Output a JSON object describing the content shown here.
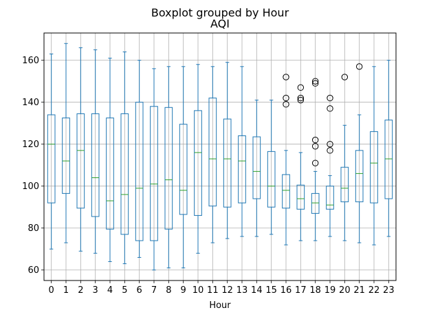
{
  "chart_data": {
    "type": "boxplot",
    "suptitle": "Boxplot grouped by Hour",
    "title": "AQI",
    "xlabel": "Hour",
    "ylabel": "",
    "categories": [
      "0",
      "1",
      "2",
      "3",
      "4",
      "5",
      "6",
      "7",
      "8",
      "9",
      "10",
      "11",
      "12",
      "13",
      "14",
      "15",
      "16",
      "17",
      "18",
      "19",
      "20",
      "21",
      "22",
      "23"
    ],
    "ylim": [
      55,
      173
    ],
    "yticks": [
      60,
      80,
      100,
      120,
      140,
      160
    ],
    "grid": true,
    "colors": {
      "box": "#1f77b4",
      "median": "#2ca02c",
      "grid": "#b0b0b0",
      "frame": "#000000"
    },
    "boxes": [
      {
        "whislo": 70,
        "q1": 92,
        "med": 120,
        "q3": 134,
        "whishi": 163,
        "fliers": []
      },
      {
        "whislo": 73,
        "q1": 96.5,
        "med": 112,
        "q3": 132.5,
        "whishi": 168,
        "fliers": []
      },
      {
        "whislo": 69,
        "q1": 89.5,
        "med": 117,
        "q3": 134.5,
        "whishi": 166,
        "fliers": []
      },
      {
        "whislo": 68,
        "q1": 85.5,
        "med": 104,
        "q3": 134.5,
        "whishi": 165,
        "fliers": []
      },
      {
        "whislo": 64,
        "q1": 79.5,
        "med": 93,
        "q3": 132.5,
        "whishi": 161,
        "fliers": []
      },
      {
        "whislo": 63,
        "q1": 77,
        "med": 96,
        "q3": 134.5,
        "whishi": 164,
        "fliers": []
      },
      {
        "whislo": 66,
        "q1": 74,
        "med": 99,
        "q3": 140,
        "whishi": 160,
        "fliers": []
      },
      {
        "whislo": 60,
        "q1": 74,
        "med": 101,
        "q3": 138,
        "whishi": 156,
        "fliers": []
      },
      {
        "whislo": 61,
        "q1": 79.5,
        "med": 103,
        "q3": 137.5,
        "whishi": 157,
        "fliers": []
      },
      {
        "whislo": 61,
        "q1": 86.5,
        "med": 98,
        "q3": 129.5,
        "whishi": 157,
        "fliers": []
      },
      {
        "whislo": 68,
        "q1": 86,
        "med": 116,
        "q3": 136,
        "whishi": 158,
        "fliers": []
      },
      {
        "whislo": 73,
        "q1": 90.5,
        "med": 113,
        "q3": 142,
        "whishi": 157,
        "fliers": []
      },
      {
        "whislo": 75,
        "q1": 90,
        "med": 113,
        "q3": 132,
        "whishi": 159,
        "fliers": []
      },
      {
        "whislo": 76,
        "q1": 92,
        "med": 112,
        "q3": 124,
        "whishi": 157,
        "fliers": []
      },
      {
        "whislo": 76,
        "q1": 94,
        "med": 107,
        "q3": 123.5,
        "whishi": 141,
        "fliers": []
      },
      {
        "whislo": 77,
        "q1": 90,
        "med": 100,
        "q3": 116.5,
        "whishi": 141,
        "fliers": []
      },
      {
        "whislo": 72,
        "q1": 89.5,
        "med": 98,
        "q3": 105.5,
        "whishi": 117,
        "fliers": [
          139,
          142,
          152
        ]
      },
      {
        "whislo": 74,
        "q1": 89,
        "med": 94,
        "q3": 100.5,
        "whishi": 116,
        "fliers": [
          141,
          142,
          147
        ]
      },
      {
        "whislo": 74,
        "q1": 87,
        "med": 92,
        "q3": 96.5,
        "whishi": 107,
        "fliers": [
          111,
          119,
          122,
          149,
          150
        ]
      },
      {
        "whislo": 76,
        "q1": 89,
        "med": 91,
        "q3": 100,
        "whishi": 105,
        "fliers": [
          117,
          120,
          137,
          142
        ]
      },
      {
        "whislo": 74,
        "q1": 92.5,
        "med": 99,
        "q3": 109,
        "whishi": 129,
        "fliers": [
          152
        ]
      },
      {
        "whislo": 73,
        "q1": 92.5,
        "med": 106,
        "q3": 117,
        "whishi": 134,
        "fliers": [
          157
        ]
      },
      {
        "whislo": 72,
        "q1": 92,
        "med": 111,
        "q3": 126,
        "whishi": 157,
        "fliers": []
      },
      {
        "whislo": 76,
        "q1": 94,
        "med": 113,
        "q3": 131.5,
        "whishi": 160,
        "fliers": []
      }
    ]
  }
}
